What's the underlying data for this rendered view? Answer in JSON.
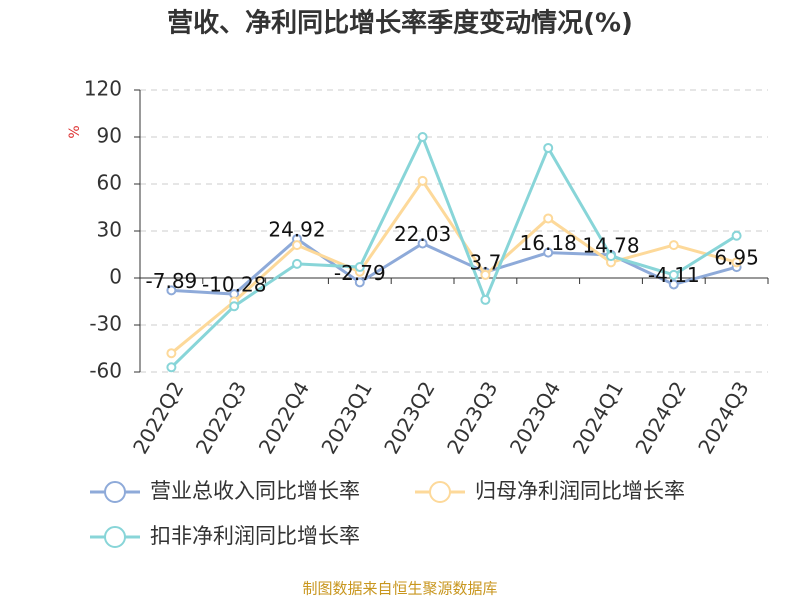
{
  "chart_data": {
    "type": "line",
    "title": "营收、净利同比增长率季度变动情况(%)",
    "y_label": "%",
    "categories": [
      "2022Q2",
      "2022Q3",
      "2022Q4",
      "2023Q1",
      "2023Q2",
      "2023Q3",
      "2023Q4",
      "2024Q1",
      "2024Q2",
      "2024Q3"
    ],
    "series": [
      {
        "name": "营业总收入同比增长率",
        "color": "#8eaad9",
        "values": [
          -7.89,
          -10.28,
          24.92,
          -2.79,
          22.03,
          3.7,
          16.18,
          14.78,
          -4.11,
          6.95
        ],
        "show_labels": true
      },
      {
        "name": "归母净利润同比增长率",
        "color": "#fdd99a",
        "values": [
          -48,
          -15,
          21,
          4,
          62,
          2,
          38,
          10,
          21,
          10
        ],
        "show_labels": false
      },
      {
        "name": "扣非净利润同比增长率",
        "color": "#88d5d8",
        "values": [
          -57,
          -18,
          9,
          7,
          90,
          -14,
          83,
          14,
          2,
          27
        ],
        "show_labels": false
      }
    ],
    "ylim": [
      -60,
      120
    ],
    "yticks": [
      -60,
      -30,
      0,
      30,
      60,
      90,
      120
    ],
    "grid": true,
    "source": "制图数据来自恒生聚源数据库"
  }
}
